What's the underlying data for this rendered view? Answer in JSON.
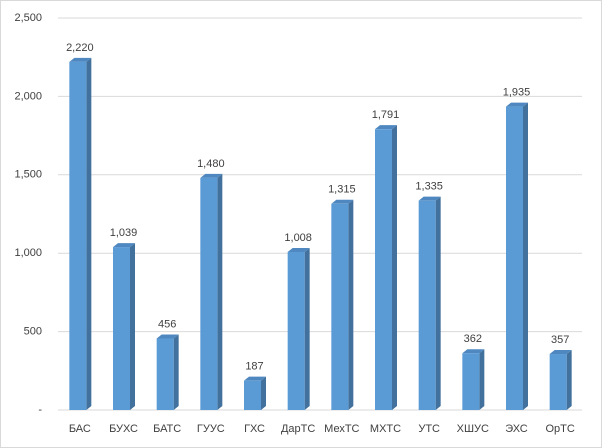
{
  "chart_data": {
    "type": "bar3d",
    "categories": [
      "БАС",
      "БУХС",
      "БАТС",
      "ГУУС",
      "ГХС",
      "ДарТС",
      "МехТС",
      "МХТС",
      "УТС",
      "ХШУС",
      "ЭХС",
      "ОрТС"
    ],
    "values": [
      2220,
      1039,
      456,
      1480,
      187,
      1008,
      1315,
      1791,
      1335,
      362,
      1935,
      357
    ],
    "value_labels": [
      "2,220",
      "1,039",
      "456",
      "1,480",
      "187",
      "1,008",
      "1,315",
      "1,791",
      "1,335",
      "362",
      "1,935",
      "357"
    ],
    "color": "#5b9bd5",
    "ylim": [
      0,
      2500
    ],
    "yticks": [
      {
        "value": 0,
        "label": "-"
      },
      500,
      {
        "value": 1000,
        "label": "1,000"
      },
      {
        "value": 1500,
        "label": "1,500"
      },
      {
        "value": 2000,
        "label": "2,000"
      },
      {
        "value": 2500,
        "label": "2,500"
      }
    ],
    "grid": true
  }
}
